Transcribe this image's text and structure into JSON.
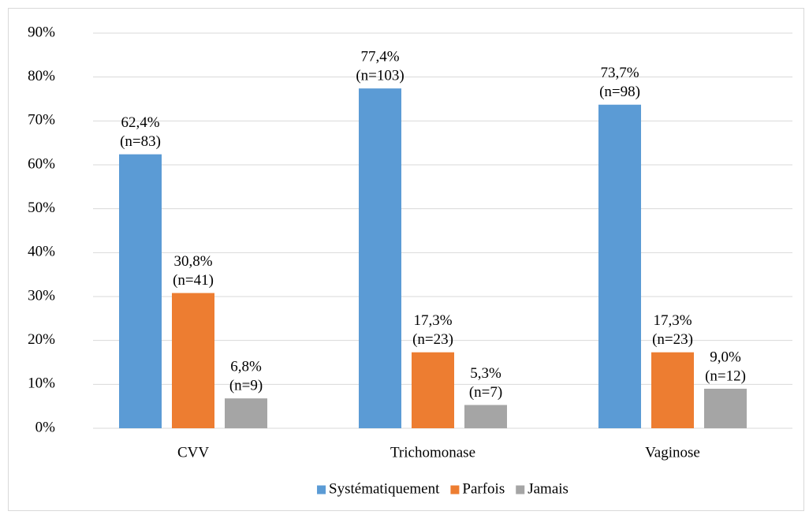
{
  "chart_data": {
    "type": "bar",
    "categories": [
      "CVV",
      "Trichomonase",
      "Vaginose"
    ],
    "series": [
      {
        "name": "Systématiquement",
        "color": "#5b9bd5",
        "values": [
          62.4,
          77.4,
          73.7
        ],
        "value_labels": [
          "62,4%",
          "77,4%",
          "73,7%"
        ],
        "n_labels": [
          "(n=83)",
          "(n=103)",
          "(n=98)"
        ]
      },
      {
        "name": "Parfois",
        "color": "#ed7d31",
        "values": [
          30.8,
          17.3,
          17.3
        ],
        "value_labels": [
          "30,8%",
          "17,3%",
          "17,3%"
        ],
        "n_labels": [
          "(n=41)",
          "(n=23)",
          "(n=23)"
        ]
      },
      {
        "name": "Jamais",
        "color": "#a5a5a5",
        "values": [
          6.8,
          5.3,
          9.0
        ],
        "value_labels": [
          "6,8%",
          "5,3%",
          "9,0%"
        ],
        "n_labels": [
          "(n=9)",
          "(n=7)",
          "(n=12)"
        ]
      }
    ],
    "ylim": [
      0,
      90
    ],
    "yticks": [
      {
        "value": 0,
        "label": "0%"
      },
      {
        "value": 10,
        "label": "10%"
      },
      {
        "value": 20,
        "label": "20%"
      },
      {
        "value": 30,
        "label": "30%"
      },
      {
        "value": 40,
        "label": "40%"
      },
      {
        "value": 50,
        "label": "50%"
      },
      {
        "value": 60,
        "label": "60%"
      },
      {
        "value": 70,
        "label": "70%"
      },
      {
        "value": 80,
        "label": "80%"
      },
      {
        "value": 90,
        "label": "90%"
      }
    ],
    "grid": true,
    "legend": "bottom"
  }
}
